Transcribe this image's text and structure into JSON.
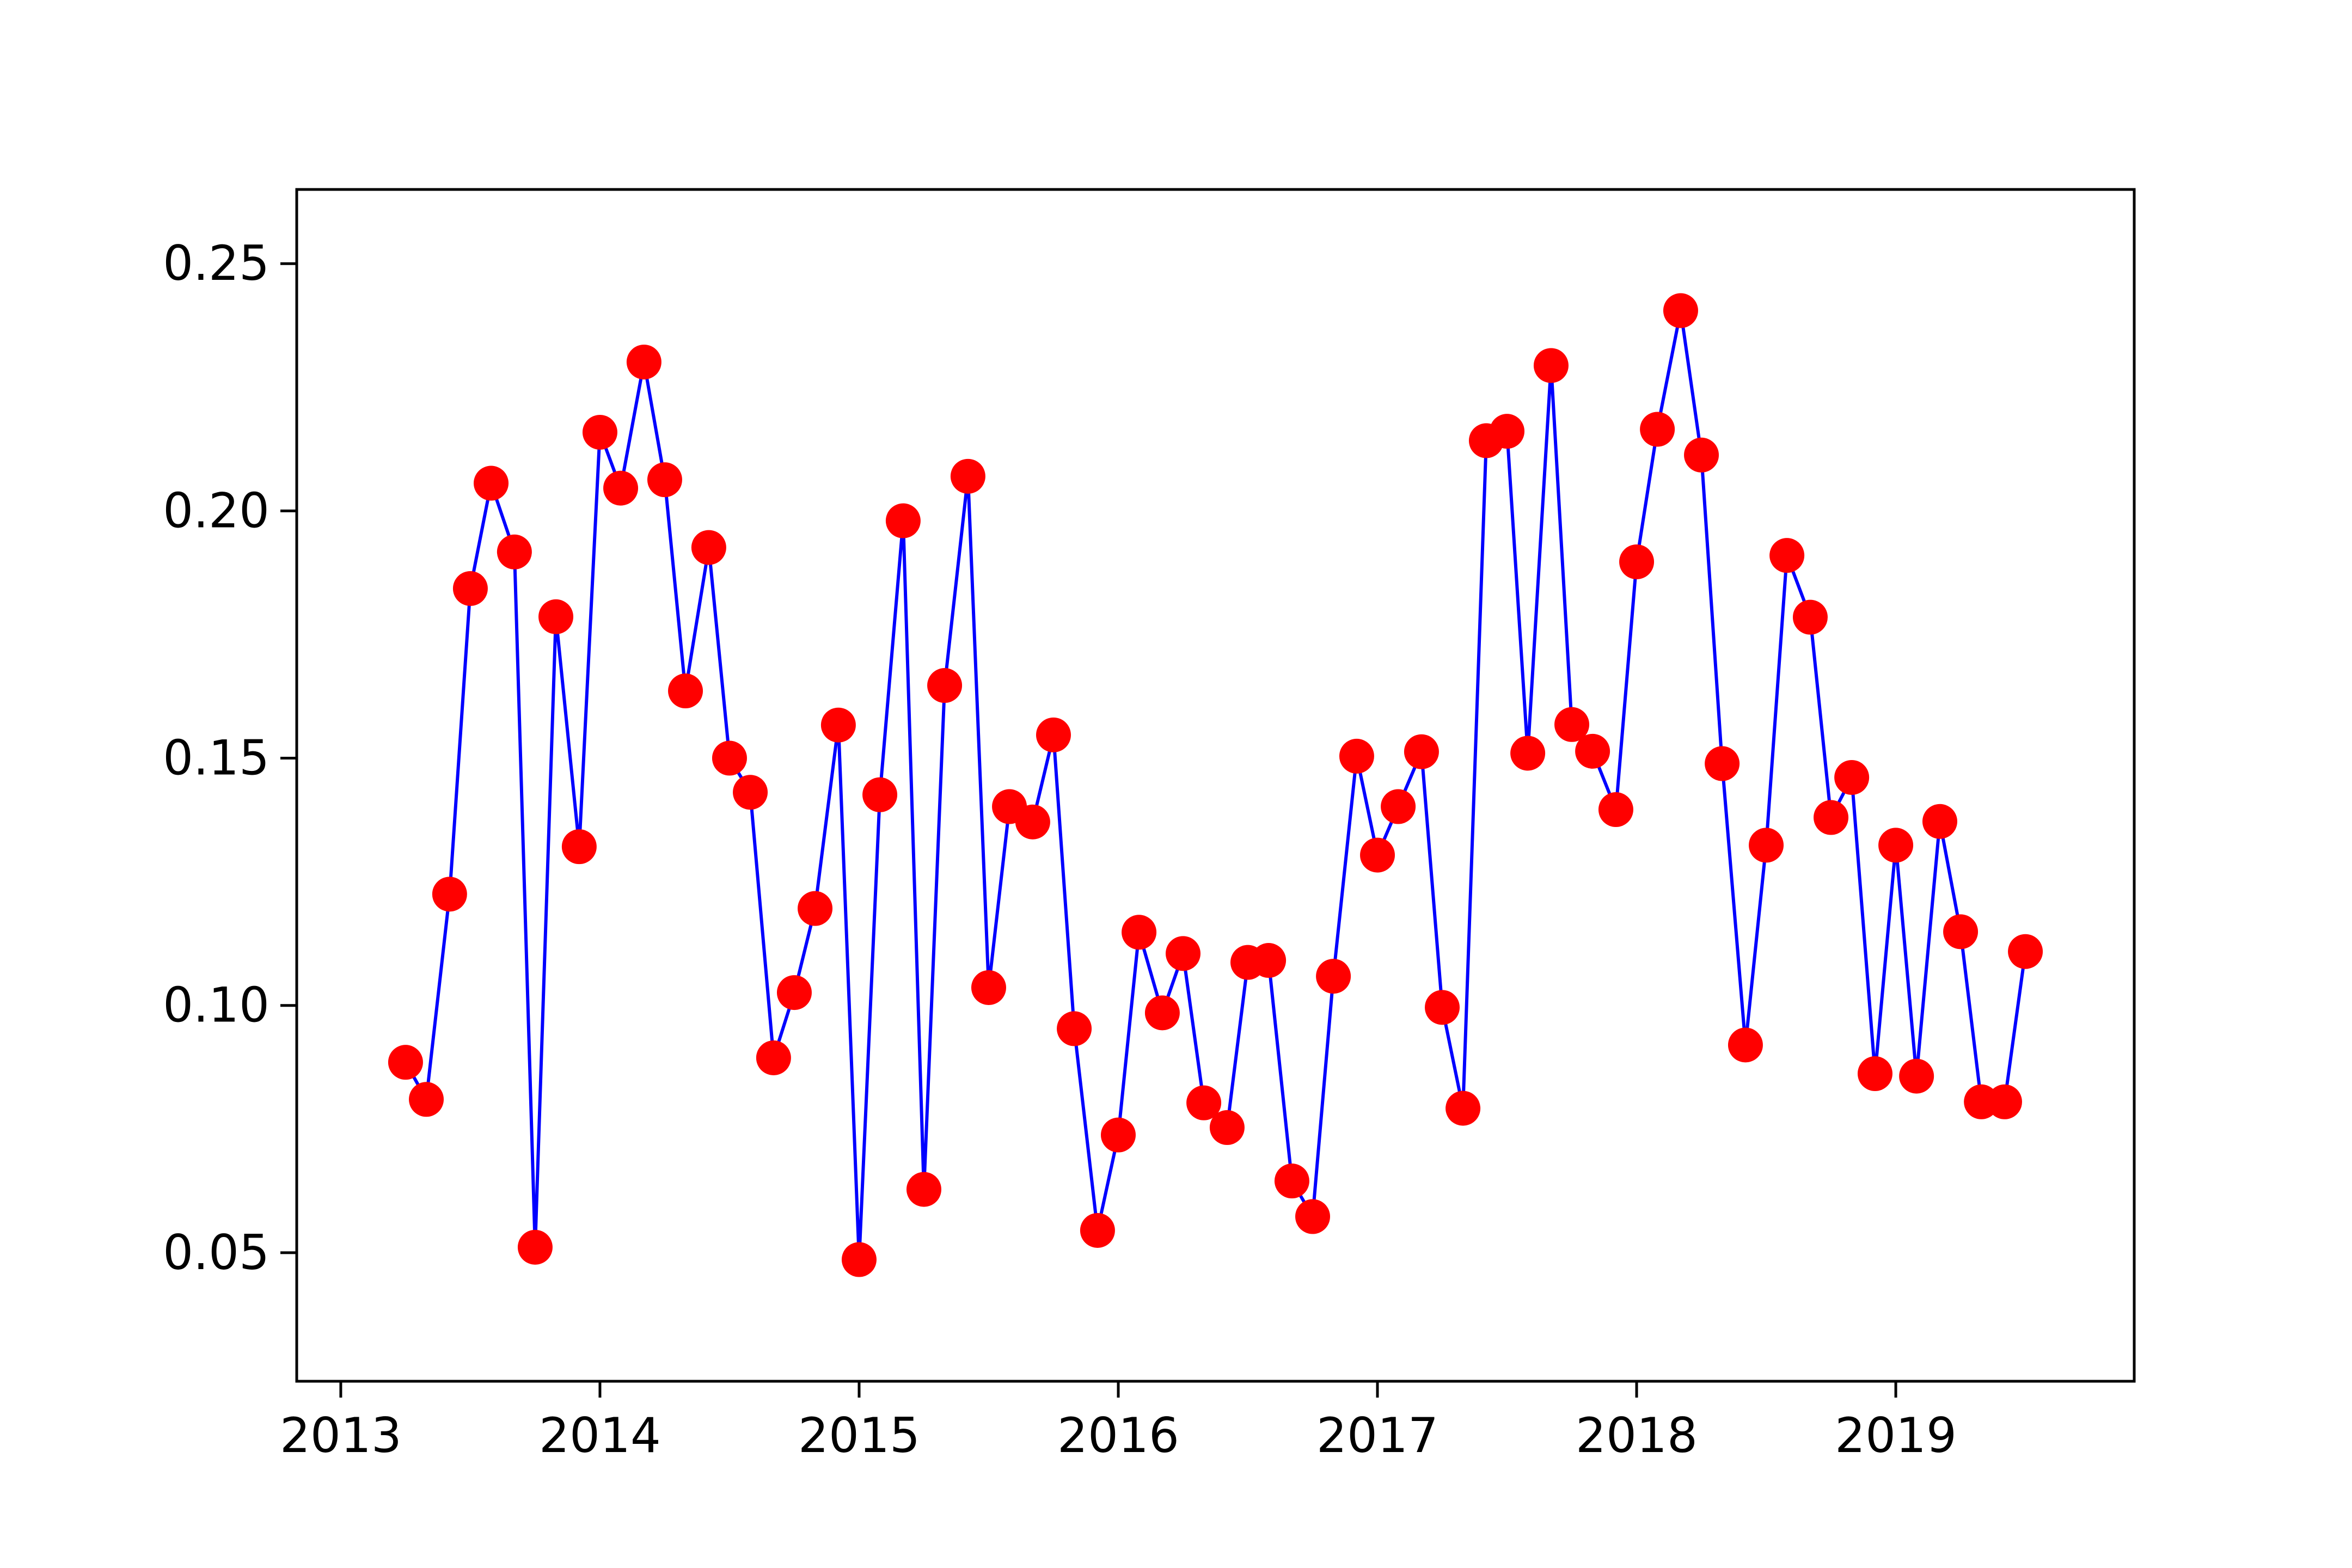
{
  "chart_data": {
    "type": "line",
    "title": "",
    "xlabel": "",
    "ylabel": "",
    "x_unit": "year",
    "xlim": [
      2012.83,
      2019.92
    ],
    "ylim": [
      0.024,
      0.265
    ],
    "xticks": [
      2013,
      2014,
      2015,
      2016,
      2017,
      2018,
      2019
    ],
    "xtick_labels": [
      "2013",
      "2014",
      "2015",
      "2016",
      "2017",
      "2018",
      "2019"
    ],
    "yticks": [
      0.05,
      0.1,
      0.15,
      0.2,
      0.25
    ],
    "ytick_labels": [
      "0.05",
      "0.10",
      "0.15",
      "0.20",
      "0.25"
    ],
    "grid": false,
    "legend": "none",
    "series": [
      {
        "line_color": "#0000ff",
        "marker_color": "#ff0000",
        "x": [
          2013.25,
          2013.33,
          2013.42,
          2013.5,
          2013.58,
          2013.67,
          2013.75,
          2013.83,
          2013.92,
          2014.0,
          2014.08,
          2014.17,
          2014.25,
          2014.33,
          2014.42,
          2014.5,
          2014.58,
          2014.67,
          2014.75,
          2014.83,
          2014.92,
          2015.0,
          2015.08,
          2015.17,
          2015.25,
          2015.33,
          2015.42,
          2015.5,
          2015.58,
          2015.67,
          2015.75,
          2015.83,
          2015.92,
          2016.0,
          2016.08,
          2016.17,
          2016.25,
          2016.33,
          2016.42,
          2016.5,
          2016.58,
          2016.67,
          2016.75,
          2016.83,
          2016.92,
          2017.0,
          2017.08,
          2017.17,
          2017.25,
          2017.33,
          2017.42,
          2017.5,
          2017.58,
          2017.67,
          2017.75,
          2017.83,
          2017.92,
          2018.0,
          2018.08,
          2018.17,
          2018.25,
          2018.33,
          2018.42,
          2018.5,
          2018.58,
          2018.67,
          2018.75,
          2018.83,
          2018.92,
          2019.0,
          2019.08,
          2019.17,
          2019.25,
          2019.33,
          2019.42,
          2019.5
        ],
        "y": [
          0.0885,
          0.081,
          0.1225,
          0.1843,
          0.2056,
          0.1917,
          0.0511,
          0.1786,
          0.1321,
          0.2159,
          0.2046,
          0.2301,
          0.2063,
          0.1636,
          0.1926,
          0.15,
          0.1431,
          0.0894,
          0.1026,
          0.1196,
          0.1567,
          0.0486,
          0.1426,
          0.198,
          0.0628,
          0.1647,
          0.207,
          0.1036,
          0.1402,
          0.1371,
          0.1547,
          0.0953,
          0.0545,
          0.0738,
          0.1148,
          0.0985,
          0.1105,
          0.0803,
          0.0753,
          0.1087,
          0.1091,
          0.0645,
          0.0573,
          0.1059,
          0.1504,
          0.1304,
          0.1402,
          0.1513,
          0.0996,
          0.0792,
          0.2142,
          0.2161,
          0.151,
          0.2294,
          0.1568,
          0.1514,
          0.1396,
          0.1897,
          0.2165,
          0.2405,
          0.2113,
          0.1489,
          0.092,
          0.1324,
          0.191,
          0.1785,
          0.138,
          0.1461,
          0.0862,
          0.1324,
          0.0857,
          0.1372,
          0.1149,
          0.0805,
          0.0805,
          0.1109
        ]
      }
    ]
  }
}
